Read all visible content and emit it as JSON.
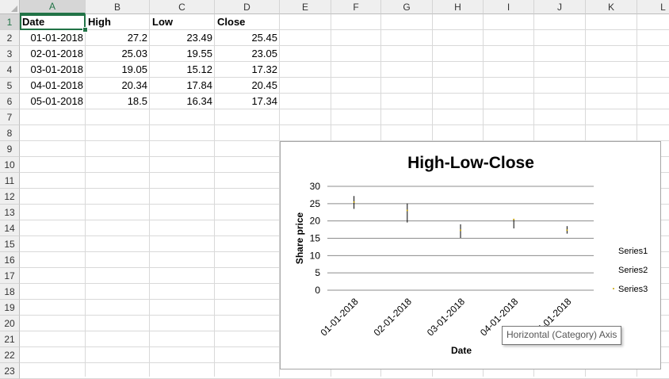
{
  "columns": [
    "A",
    "B",
    "C",
    "D",
    "E",
    "F",
    "G",
    "H",
    "I",
    "J",
    "K",
    "L"
  ],
  "rows": [
    "1",
    "2",
    "3",
    "4",
    "5",
    "6",
    "7",
    "8",
    "9",
    "10",
    "11",
    "12",
    "13",
    "14",
    "15",
    "16",
    "17",
    "18",
    "19",
    "20",
    "21",
    "22",
    "23"
  ],
  "selected": {
    "column": "A",
    "row": "1"
  },
  "table": {
    "headers": [
      "Date",
      "High",
      "Low",
      "Close"
    ],
    "rows": [
      [
        "01-01-2018",
        "27.2",
        "23.49",
        "25.45"
      ],
      [
        "02-01-2018",
        "25.03",
        "19.55",
        "23.05"
      ],
      [
        "03-01-2018",
        "19.05",
        "15.12",
        "17.32"
      ],
      [
        "04-01-2018",
        "20.34",
        "17.84",
        "20.45"
      ],
      [
        "05-01-2018",
        "18.5",
        "16.34",
        "17.34"
      ]
    ]
  },
  "colors": {
    "excel_green": "#217346",
    "series_line": "#000000",
    "close_marker": "#c9a400"
  },
  "chart_data": {
    "type": "line",
    "title": "High-Low-Close",
    "xlabel": "Date",
    "ylabel": "Share price",
    "categories": [
      "01-01-2018",
      "02-01-2018",
      "03-01-2018",
      "04-01-2018",
      "05-01-2018"
    ],
    "series": [
      {
        "name": "Series1",
        "values": [
          27.2,
          25.03,
          19.05,
          20.34,
          18.5
        ]
      },
      {
        "name": "Series2",
        "values": [
          23.49,
          19.55,
          15.12,
          17.84,
          16.34
        ]
      },
      {
        "name": "Series3",
        "values": [
          25.45,
          23.05,
          17.32,
          20.45,
          17.34
        ]
      }
    ],
    "ylim": [
      0,
      30
    ],
    "yticks": [
      "0",
      "5",
      "10",
      "15",
      "20",
      "25",
      "30"
    ],
    "grid": true,
    "legend": "right"
  },
  "tooltip": "Horizontal (Category) Axis"
}
